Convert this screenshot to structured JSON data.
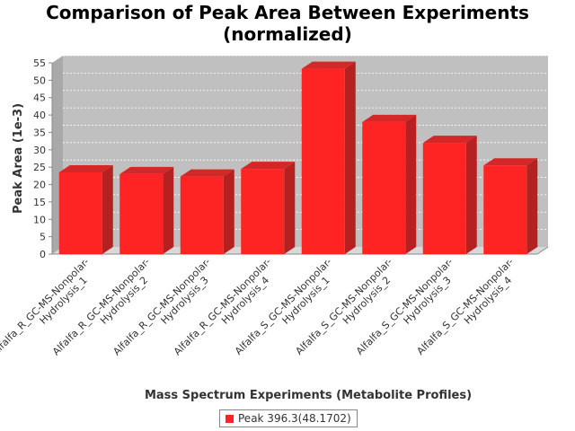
{
  "chart_data": {
    "type": "bar",
    "title_lines": [
      "Comparison of Peak Area Between Experiments",
      "(normalized)"
    ],
    "xlabel": "Mass Spectrum Experiments (Metabolite Profiles)",
    "ylabel": "Peak Area (1e-3)",
    "ylim": [
      0,
      55
    ],
    "yticks": [
      0,
      5,
      10,
      15,
      20,
      25,
      30,
      35,
      40,
      45,
      50,
      55
    ],
    "grid": true,
    "legend_position": "bottom",
    "categories": [
      [
        "Alfalfa_R_GC-MS-Nonpolar-",
        "Hydrolysis_1"
      ],
      [
        "Alfalfa_R_GC-MS-Nonpolar-",
        "Hydrolysis_2"
      ],
      [
        "Alfalfa_R_GC-MS-Nonpolar-",
        "Hydrolysis_3"
      ],
      [
        "Alfalfa_R_GC-MS-Nonpolar-",
        "Hydrolysis_4"
      ],
      [
        "Alfalfa_S_GC-MS-Nonpolar-",
        "Hydrolysis_1"
      ],
      [
        "Alfalfa_S_GC-MS-Nonpolar-",
        "Hydrolysis_2"
      ],
      [
        "Alfalfa_S_GC-MS-Nonpolar-",
        "Hydrolysis_3"
      ],
      [
        "Alfalfa_S_GC-MS-Nonpolar-",
        "Hydrolysis_4"
      ]
    ],
    "series": [
      {
        "name": "Peak 396.3(48.1702)",
        "color": "#ff2424",
        "values": [
          23.5,
          23.0,
          22.3,
          24.5,
          53.3,
          38.0,
          32.0,
          25.5
        ]
      }
    ]
  }
}
